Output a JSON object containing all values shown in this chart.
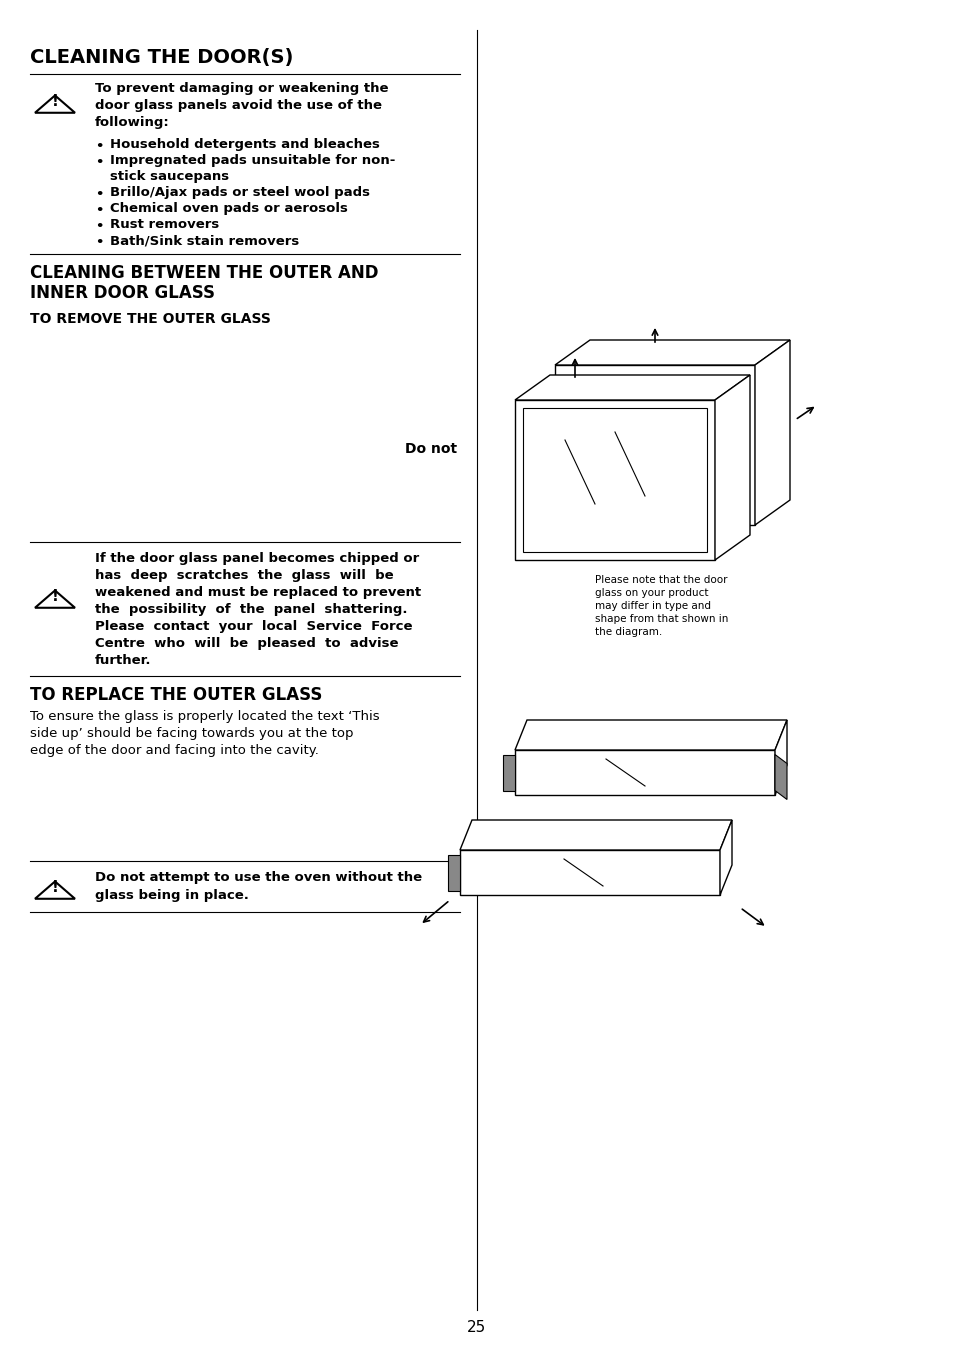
{
  "bg_color": "#ffffff",
  "page_number": "25",
  "title1": "CLEANING THE DOOR(S)",
  "warning1_text_line1": "To prevent damaging or weakening the",
  "warning1_text_line2": "door glass panels avoid the use of the",
  "warning1_text_line3": "following:",
  "bullet_items": [
    "Household detergents and bleaches",
    "Impregnated pads unsuitable for non-",
    "stick saucepans",
    "Brillo/Ajax pads or steel wool pads",
    "Chemical oven pads or aerosols",
    "Rust removers",
    "Bath/Sink stain removers"
  ],
  "bullet_has_sub": [
    true,
    true,
    false,
    false,
    false,
    false,
    false
  ],
  "title2_line1": "CLEANING BETWEEN THE OUTER AND",
  "title2_line2": "INNER DOOR GLASS",
  "subtitle1": "TO REMOVE THE OUTER GLASS",
  "do_not_text": "Do not",
  "warning2_lines": [
    "If the door glass panel becomes chipped or",
    "has  deep  scratches  the  glass  will  be",
    "weakened and must be replaced to prevent",
    "the  possibility  of  the  panel  shattering.",
    "Please  contact  your  local  Service  Force",
    "Centre  who  will  be  pleased  to  advise",
    "further."
  ],
  "title3": "TO REPLACE THE OUTER GLASS",
  "replace_lines": [
    "To ensure the glass is properly located the text ‘This",
    "side up’ should be facing towards you at the top",
    "edge of the door and facing into the cavity."
  ],
  "warning3_lines": [
    "Do not attempt to use the oven without the",
    "glass being in place."
  ],
  "diagram_note_lines": [
    "Please note that the door",
    "glass on your product",
    "may differ in type and",
    "shape from that shown in",
    "the diagram."
  ]
}
